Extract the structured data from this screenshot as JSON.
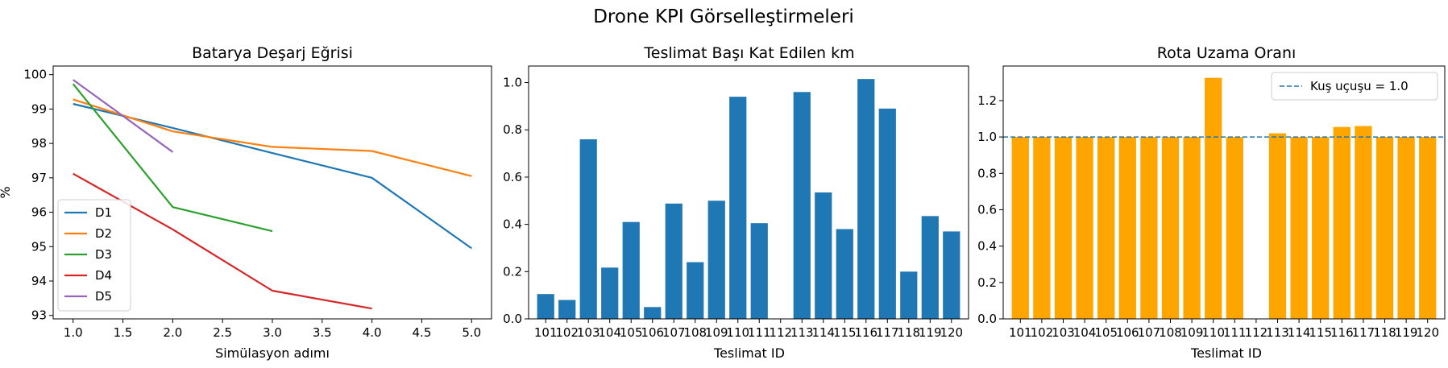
{
  "suptitle": "Drone KPI Görselleştirmeleri",
  "chart_data": [
    {
      "type": "line",
      "title": "Batarya Deşarj Eğrisi",
      "xlabel": "Simülasyon adımı",
      "ylabel": "%",
      "xlim": [
        0.8,
        5.2
      ],
      "ylim": [
        92.9,
        100.25
      ],
      "xticks": [
        "1.0",
        "1.5",
        "2.0",
        "2.5",
        "3.0",
        "3.5",
        "4.0",
        "4.5",
        "5.0"
      ],
      "yticks": [
        "93",
        "94",
        "95",
        "96",
        "97",
        "98",
        "99",
        "100"
      ],
      "legend": "lower-left",
      "series": [
        {
          "name": "D1",
          "color": "#1f77b4",
          "x": [
            1,
            2,
            3,
            4,
            5
          ],
          "y": [
            99.15,
            98.45,
            97.72,
            97.0,
            94.95
          ]
        },
        {
          "name": "D2",
          "color": "#ff7f0e",
          "x": [
            1,
            2,
            3,
            4,
            5
          ],
          "y": [
            99.28,
            98.35,
            97.9,
            97.78,
            97.05
          ]
        },
        {
          "name": "D3",
          "color": "#2ca02c",
          "x": [
            1,
            2,
            3
          ],
          "y": [
            99.73,
            96.15,
            95.45
          ]
        },
        {
          "name": "D4",
          "color": "#d62728",
          "x": [
            1,
            2,
            3,
            4
          ],
          "y": [
            97.12,
            95.5,
            93.72,
            93.2
          ]
        },
        {
          "name": "D5",
          "color": "#9467bd",
          "x": [
            1,
            2
          ],
          "y": [
            99.85,
            97.75
          ]
        }
      ]
    },
    {
      "type": "bar",
      "title": "Teslimat Başı Kat Edilen km",
      "xlabel": "Teslimat ID",
      "ylabel": "",
      "color": "#1f77b4",
      "ylim": [
        0,
        1.07
      ],
      "yticks": [
        "0.0",
        "0.2",
        "0.4",
        "0.6",
        "0.8",
        "1.0"
      ],
      "categories": [
        "101",
        "102",
        "103",
        "104",
        "105",
        "106",
        "107",
        "108",
        "109",
        "110",
        "111",
        "112",
        "113",
        "114",
        "115",
        "116",
        "117",
        "118",
        "119",
        "120"
      ],
      "values": [
        0.105,
        0.08,
        0.76,
        0.217,
        0.41,
        0.05,
        0.488,
        0.24,
        0.5,
        0.94,
        0.405,
        null,
        0.96,
        0.535,
        0.38,
        1.015,
        0.89,
        0.2,
        0.435,
        0.37
      ]
    },
    {
      "type": "bar",
      "title": "Rota Uzama Oranı",
      "xlabel": "Teslimat ID",
      "ylabel": "",
      "color": "#ffa500",
      "ylim": [
        0,
        1.39
      ],
      "yticks": [
        "0.0",
        "0.2",
        "0.4",
        "0.6",
        "0.8",
        "1.0",
        "1.2"
      ],
      "categories": [
        "101",
        "102",
        "103",
        "104",
        "105",
        "106",
        "107",
        "108",
        "109",
        "110",
        "111",
        "112",
        "113",
        "114",
        "115",
        "116",
        "117",
        "118",
        "119",
        "120"
      ],
      "values": [
        1.0,
        1.0,
        1.0,
        1.0,
        1.0,
        1.0,
        1.0,
        1.0,
        1.0,
        1.325,
        1.0,
        null,
        1.02,
        1.0,
        1.0,
        1.055,
        1.06,
        1.0,
        1.0,
        1.0
      ],
      "reference_line": {
        "value": 1.0,
        "label": "Kuş uçuşu = 1.0",
        "color": "#1f77b4",
        "style": "dashed"
      },
      "legend": "top-right"
    }
  ]
}
